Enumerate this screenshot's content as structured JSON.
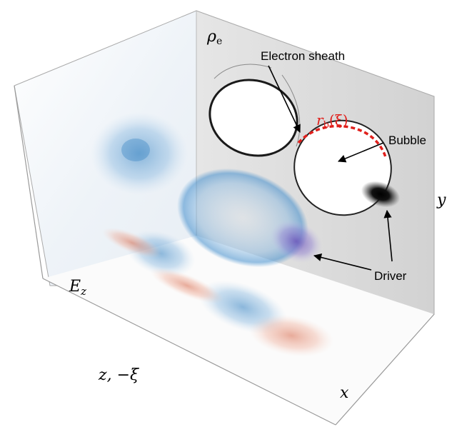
{
  "axes": {
    "rho_e": {
      "main": "ρ",
      "sub": "e"
    },
    "E_z": {
      "main": "E",
      "sub": "z"
    },
    "z_xi": "z, −ξ",
    "x": "x",
    "y": "y"
  },
  "annotations": {
    "electron_sheath": "Electron sheath",
    "bubble": "Bubble",
    "driver": "Driver",
    "r_b": {
      "main": "r",
      "sub": "b",
      "arg": "(ξ)"
    }
  },
  "colors": {
    "sheath_curve": "#e0201c",
    "field_positive": "#2f7fc1",
    "field_negative": "#d8694a",
    "driver": "#7a5fc0",
    "density": "#000000"
  }
}
